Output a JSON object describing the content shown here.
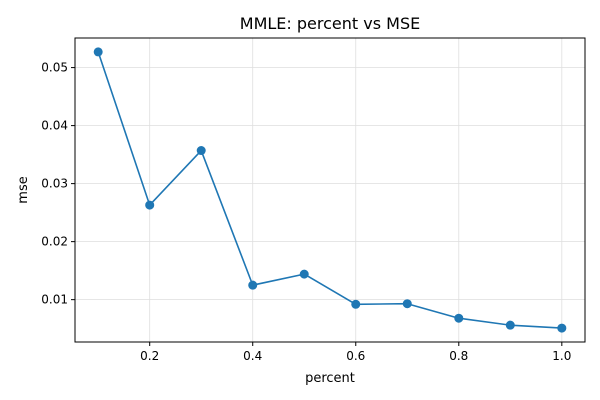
{
  "chart_data": {
    "type": "line",
    "title": "MMLE: percent vs MSE",
    "xlabel": "percent",
    "ylabel": "mse",
    "xlim": [
      0.055,
      1.045
    ],
    "ylim": [
      0.0027,
      0.0551
    ],
    "xticks": [
      0.2,
      0.4,
      0.6,
      0.8,
      1.0
    ],
    "xtick_labels": [
      "0.2",
      "0.4",
      "0.6",
      "0.8",
      "1.0"
    ],
    "yticks": [
      0.01,
      0.02,
      0.03,
      0.04,
      0.05
    ],
    "ytick_labels": [
      "0.01",
      "0.02",
      "0.03",
      "0.04",
      "0.05"
    ],
    "grid": true,
    "color": "#1f77b4",
    "series": [
      {
        "x": [
          0.1,
          0.2,
          0.3,
          0.4,
          0.5,
          0.6,
          0.7,
          0.8,
          0.9,
          1.0
        ],
        "values": [
          0.0527,
          0.0263,
          0.0357,
          0.0125,
          0.0144,
          0.0092,
          0.0093,
          0.0068,
          0.0056,
          0.0051
        ]
      }
    ]
  }
}
